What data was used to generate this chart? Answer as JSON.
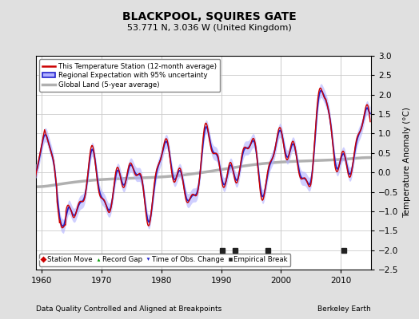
{
  "title": "BLACKPOOL, SQUIRES GATE",
  "subtitle": "53.771 N, 3.036 W (United Kingdom)",
  "xlabel_bottom": "Data Quality Controlled and Aligned at Breakpoints",
  "xlabel_right": "Berkeley Earth",
  "ylabel": "Temperature Anomaly (°C)",
  "xlim": [
    1959.0,
    2015.0
  ],
  "ylim": [
    -2.5,
    3.0
  ],
  "yticks": [
    -2.5,
    -2,
    -1.5,
    -1,
    -0.5,
    0,
    0.5,
    1,
    1.5,
    2,
    2.5,
    3
  ],
  "xticks": [
    1960,
    1970,
    1980,
    1990,
    2000,
    2010
  ],
  "bg_color": "#e0e0e0",
  "plot_bg_color": "#ffffff",
  "grid_color": "#cccccc",
  "uncertainty_color": "#b0b0ff",
  "regional_color": "#2222cc",
  "station_color": "#cc0000",
  "global_color": "#b0b0b0",
  "legend_items": [
    {
      "label": "This Temperature Station (12-month average)",
      "color": "#cc0000",
      "lw": 1.5
    },
    {
      "label": "Regional Expectation with 95% uncertainty",
      "color": "#2222cc",
      "lw": 1.5
    },
    {
      "label": "Global Land (5-year average)",
      "color": "#b0b0b0",
      "lw": 2.5
    }
  ],
  "marker_items": [
    {
      "label": "Station Move",
      "marker": "D",
      "color": "#cc0000"
    },
    {
      "label": "Record Gap",
      "marker": "^",
      "color": "#009900"
    },
    {
      "label": "Time of Obs. Change",
      "marker": "v",
      "color": "#2222cc"
    },
    {
      "label": "Empirical Break",
      "marker": "s",
      "color": "#222222"
    }
  ],
  "empirical_breaks": [
    1990.2,
    1992.3,
    1997.8,
    2010.5
  ],
  "time_obs_changes": [],
  "station_moves": [],
  "record_gaps": []
}
